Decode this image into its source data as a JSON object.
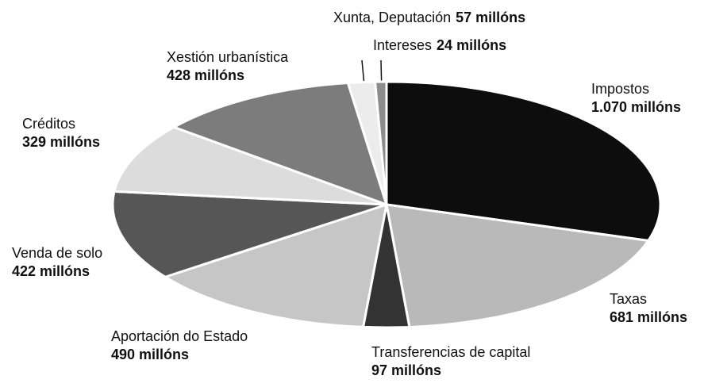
{
  "chart_data": {
    "type": "pie",
    "categories": [
      "Impostos",
      "Taxas",
      "Transferencias de capital",
      "Aportación do Estado",
      "Venda de solo",
      "Créditos",
      "Xestión urbanística",
      "Xunta, Deputación",
      "Intereses"
    ],
    "values": [
      1070,
      681,
      97,
      490,
      422,
      329,
      428,
      57,
      24
    ],
    "value_labels": [
      "1.070 millóns",
      "681 millóns",
      "97 millóns",
      "490 millóns",
      "422 millóns",
      "329 millóns",
      "428 millóns",
      "57 millóns",
      "24 millóns"
    ],
    "colors": [
      "#0d0d0d",
      "#b9b9b9",
      "#333333",
      "#c6c6c6",
      "#565656",
      "#dcdcdc",
      "#7c7c7c",
      "#ececec",
      "#8c8c8c"
    ]
  }
}
